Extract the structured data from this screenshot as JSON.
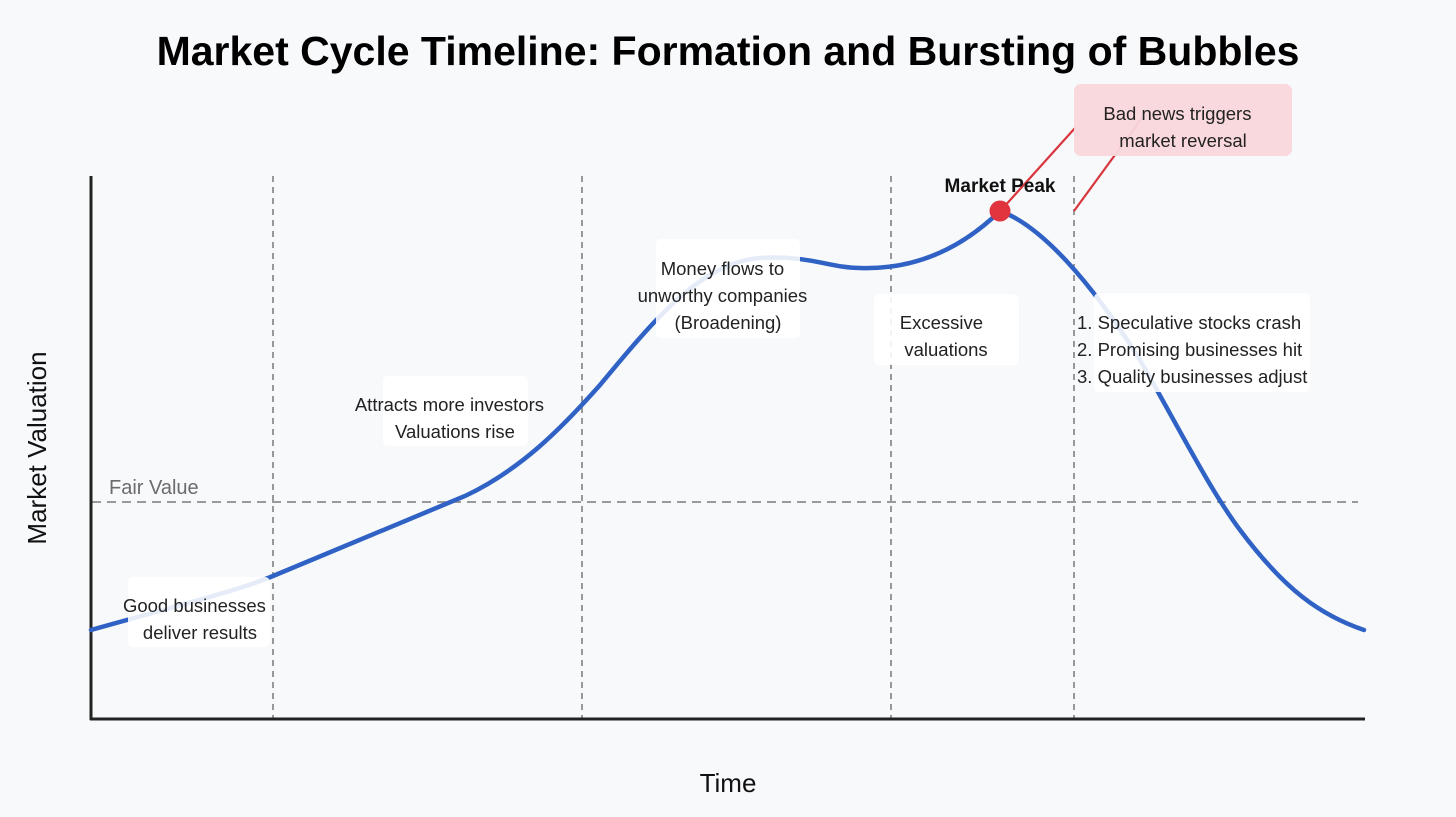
{
  "title": "Market Cycle Timeline: Formation and Bursting of Bubbles",
  "axes": {
    "x_label": "Time",
    "y_label": "Market Valuation"
  },
  "fair_value_label": "Fair Value",
  "peak_label": "Market Peak",
  "annotations": {
    "stage1": [
      "Good businesses",
      "deliver results"
    ],
    "stage2": [
      "Attracts more investors",
      "Valuations rise"
    ],
    "stage3": [
      "Money flows to",
      "unworthy companies",
      "(Broadening)"
    ],
    "stage4": [
      "Excessive",
      "valuations"
    ],
    "trigger": [
      "Bad news triggers",
      "market reversal"
    ],
    "crash": [
      "1. Speculative stocks crash",
      "2. Promising businesses hit",
      "3. Quality businesses adjust"
    ]
  },
  "colors": {
    "curve": "#2f62c4",
    "peak": "#e0353f",
    "trigger_box": "#f9d7db",
    "trigger_line": "#d9363e",
    "axis": "#222222",
    "divider": "#808080",
    "fair_line": "#7a7a7a"
  }
}
